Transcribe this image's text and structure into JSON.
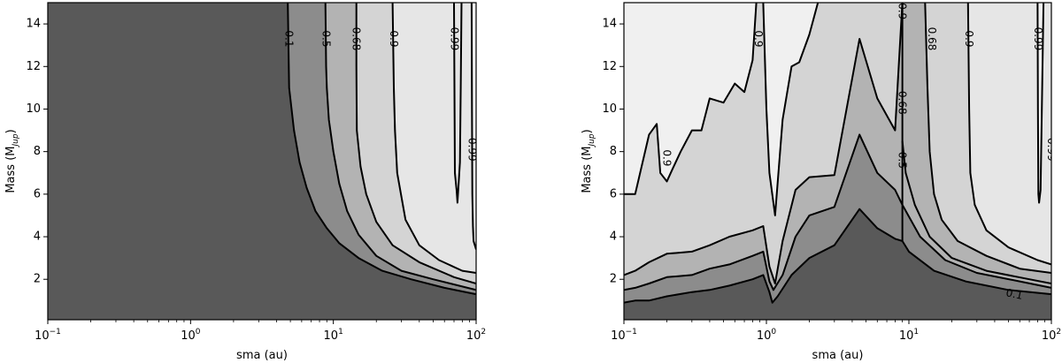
{
  "chart_data": [
    {
      "type": "contour",
      "xlabel": "sma (au)",
      "ylabel_main": "Mass (M",
      "ylabel_sub": "Jup",
      "ylabel_close": ")",
      "xscale": "log",
      "xlim": [
        0.1,
        100
      ],
      "ylim": [
        0.1,
        15
      ],
      "xticks": [
        {
          "value": 0.1,
          "base": "10",
          "exp": "−1"
        },
        {
          "value": 1,
          "base": "10",
          "exp": "0"
        },
        {
          "value": 10,
          "base": "10",
          "exp": "1"
        },
        {
          "value": 100,
          "base": "10",
          "exp": "2"
        }
      ],
      "yticks": [
        {
          "value": 2,
          "label": "2"
        },
        {
          "value": 4,
          "label": "4"
        },
        {
          "value": 6,
          "label": "6"
        },
        {
          "value": 8,
          "label": "8"
        },
        {
          "value": 10,
          "label": "10"
        },
        {
          "value": 12,
          "label": "12"
        },
        {
          "value": 14,
          "label": "14"
        }
      ],
      "levels": [
        0.1,
        0.5,
        0.68,
        0.9,
        0.99
      ],
      "fill_colors": [
        "#595959",
        "#8c8c8c",
        "#b3b3b3",
        "#d4d4d4",
        "#e6e6e6",
        "#f0f0f0"
      ],
      "contours": [
        {
          "level": "0.1",
          "points": [
            [
              4.8,
              15
            ],
            [
              4.9,
              11
            ],
            [
              5.3,
              9
            ],
            [
              5.8,
              7.5
            ],
            [
              6.5,
              6.3
            ],
            [
              7.5,
              5.2
            ],
            [
              9,
              4.4
            ],
            [
              11,
              3.7
            ],
            [
              15,
              3.0
            ],
            [
              22,
              2.4
            ],
            [
              35,
              2.0
            ],
            [
              60,
              1.6
            ],
            [
              100,
              1.3
            ]
          ]
        },
        {
          "level": "0.5",
          "points": [
            [
              8.8,
              15
            ],
            [
              8.9,
              12
            ],
            [
              9,
              11
            ],
            [
              9.3,
              9.5
            ],
            [
              10,
              8
            ],
            [
              11,
              6.5
            ],
            [
              12.5,
              5.2
            ],
            [
              15,
              4.1
            ],
            [
              20,
              3.1
            ],
            [
              30,
              2.4
            ],
            [
              50,
              2.0
            ],
            [
              100,
              1.5
            ]
          ]
        },
        {
          "level": "0.68",
          "points": [
            [
              14.5,
              15
            ],
            [
              14.5,
              12
            ],
            [
              14.6,
              9
            ],
            [
              15.5,
              7.3
            ],
            [
              17,
              6.0
            ],
            [
              20,
              4.7
            ],
            [
              26,
              3.6
            ],
            [
              40,
              2.8
            ],
            [
              70,
              2.1
            ],
            [
              100,
              1.8
            ]
          ]
        },
        {
          "level": "0.9",
          "points": [
            [
              26,
              15
            ],
            [
              26.5,
              11
            ],
            [
              27,
              9
            ],
            [
              28,
              7
            ],
            [
              32,
              4.8
            ],
            [
              40,
              3.6
            ],
            [
              55,
              2.9
            ],
            [
              80,
              2.4
            ],
            [
              100,
              2.3
            ]
          ]
        },
        {
          "level": "0.99",
          "points": [
            [
              70,
              15
            ],
            [
              70.5,
              11
            ],
            [
              71,
              7
            ],
            [
              73,
              6.2
            ],
            [
              74,
              5.6
            ],
            [
              75,
              6.2
            ],
            [
              77,
              7.5
            ],
            [
              78,
              11
            ],
            [
              79,
              15
            ]
          ]
        },
        {
          "level": "0.99",
          "points": [
            [
              93,
              15
            ],
            [
              93.5,
              10
            ],
            [
              94,
              6
            ],
            [
              95,
              4.5
            ],
            [
              96,
              3.8
            ],
            [
              100,
              3.4
            ]
          ]
        }
      ],
      "labels": [
        {
          "text": "0.1",
          "x": 4.9,
          "y": 13.3
        },
        {
          "text": "0.5",
          "x": 8.9,
          "y": 13.3
        },
        {
          "text": "0.68",
          "x": 14.5,
          "y": 13.3
        },
        {
          "text": "0.9",
          "x": 26.5,
          "y": 13.3
        },
        {
          "text": "0.99",
          "x": 70.5,
          "y": 13.3
        },
        {
          "text": "0.99",
          "x": 93.5,
          "y": 8.1
        }
      ]
    },
    {
      "type": "contour",
      "xlabel": "sma (au)",
      "ylabel_main": "Mass (M",
      "ylabel_sub": "Jup",
      "ylabel_close": ")",
      "xscale": "log",
      "xlim": [
        0.1,
        100
      ],
      "ylim": [
        0.1,
        15
      ],
      "xticks": [
        {
          "value": 0.1,
          "base": "10",
          "exp": "−1"
        },
        {
          "value": 1,
          "base": "10",
          "exp": "0"
        },
        {
          "value": 10,
          "base": "10",
          "exp": "1"
        },
        {
          "value": 100,
          "base": "10",
          "exp": "2"
        }
      ],
      "yticks": [
        {
          "value": 2,
          "label": "2"
        },
        {
          "value": 4,
          "label": "4"
        },
        {
          "value": 6,
          "label": "6"
        },
        {
          "value": 8,
          "label": "8"
        },
        {
          "value": 10,
          "label": "10"
        },
        {
          "value": 12,
          "label": "12"
        },
        {
          "value": 14,
          "label": "14"
        }
      ],
      "levels": [
        0.1,
        0.5,
        0.68,
        0.9,
        0.99
      ],
      "fill_colors": [
        "#595959",
        "#8c8c8c",
        "#b3b3b3",
        "#d4d4d4",
        "#e6e6e6",
        "#f0f0f0"
      ],
      "contours": [
        {
          "level": "0.1",
          "points": [
            [
              0.1,
              0.9
            ],
            [
              0.12,
              1.0
            ],
            [
              0.15,
              1.0
            ],
            [
              0.2,
              1.2
            ],
            [
              0.3,
              1.4
            ],
            [
              0.4,
              1.5
            ],
            [
              0.55,
              1.7
            ],
            [
              0.8,
              2.0
            ],
            [
              0.95,
              2.2
            ],
            [
              1.05,
              1.4
            ],
            [
              1.1,
              0.9
            ],
            [
              1.2,
              1.2
            ],
            [
              1.5,
              2.2
            ],
            [
              2,
              3.0
            ],
            [
              3,
              3.6
            ],
            [
              4.5,
              5.3
            ],
            [
              6,
              4.4
            ],
            [
              8,
              3.9
            ],
            [
              9,
              3.8
            ],
            [
              10,
              3.3
            ],
            [
              15,
              2.4
            ],
            [
              25,
              1.9
            ],
            [
              50,
              1.5
            ],
            [
              100,
              1.3
            ]
          ]
        },
        {
          "level": "0.5",
          "points": [
            [
              0.1,
              1.5
            ],
            [
              0.12,
              1.6
            ],
            [
              0.15,
              1.8
            ],
            [
              0.2,
              2.1
            ],
            [
              0.3,
              2.2
            ],
            [
              0.4,
              2.5
            ],
            [
              0.55,
              2.7
            ],
            [
              0.8,
              3.1
            ],
            [
              0.95,
              3.3
            ],
            [
              1.05,
              1.9
            ],
            [
              1.12,
              1.5
            ],
            [
              1.3,
              2.2
            ],
            [
              1.6,
              4.0
            ],
            [
              2,
              5.0
            ],
            [
              3,
              5.4
            ],
            [
              4.5,
              8.8
            ],
            [
              6,
              7.0
            ],
            [
              8,
              6.2
            ],
            [
              9,
              5.5
            ],
            [
              12,
              4.0
            ],
            [
              18,
              2.9
            ],
            [
              30,
              2.3
            ],
            [
              60,
              1.9
            ],
            [
              100,
              1.6
            ]
          ]
        },
        {
          "level": "0.68",
          "points": [
            [
              0.1,
              2.2
            ],
            [
              0.12,
              2.4
            ],
            [
              0.15,
              2.8
            ],
            [
              0.2,
              3.2
            ],
            [
              0.3,
              3.3
            ],
            [
              0.4,
              3.6
            ],
            [
              0.55,
              4.0
            ],
            [
              0.8,
              4.3
            ],
            [
              0.95,
              4.5
            ],
            [
              1.05,
              2.6
            ],
            [
              1.15,
              1.8
            ],
            [
              1.3,
              3.8
            ],
            [
              1.6,
              6.2
            ],
            [
              2,
              6.8
            ],
            [
              3,
              6.9
            ],
            [
              4.5,
              13.3
            ],
            [
              6,
              10.5
            ],
            [
              8,
              9.0
            ],
            [
              9,
              15
            ],
            [
              9.0,
              15
            ]
          ]
        },
        {
          "level": "0.68b",
          "points": [
            [
              9,
              8.5
            ],
            [
              9.5,
              7.0
            ],
            [
              11,
              5.5
            ],
            [
              14,
              4.0
            ],
            [
              20,
              3.0
            ],
            [
              35,
              2.4
            ],
            [
              70,
              2.0
            ],
            [
              100,
              1.8
            ]
          ]
        },
        {
          "level": "0.9",
          "points": [
            [
              0.1,
              6.0
            ],
            [
              0.12,
              6.0
            ],
            [
              0.15,
              8.8
            ],
            [
              0.17,
              9.3
            ],
            [
              0.18,
              7.0
            ],
            [
              0.2,
              6.6
            ],
            [
              0.22,
              7.2
            ],
            [
              0.25,
              8.0
            ],
            [
              0.3,
              9.0
            ],
            [
              0.35,
              9.0
            ],
            [
              0.4,
              10.5
            ],
            [
              0.5,
              10.3
            ],
            [
              0.6,
              11.2
            ],
            [
              0.7,
              10.8
            ],
            [
              0.8,
              12.3
            ],
            [
              0.85,
              15
            ]
          ]
        },
        {
          "level": "0.9b",
          "points": [
            [
              0.95,
              15
            ],
            [
              1.0,
              10
            ],
            [
              1.05,
              7
            ],
            [
              1.15,
              5.0
            ],
            [
              1.3,
              9.5
            ],
            [
              1.5,
              12.0
            ],
            [
              1.7,
              12.2
            ],
            [
              2,
              13.5
            ],
            [
              2.3,
              15
            ]
          ]
        },
        {
          "level": "0.9c",
          "points": [
            [
              13,
              15
            ],
            [
              13.5,
              11
            ],
            [
              14,
              8
            ],
            [
              15,
              6.0
            ],
            [
              17,
              4.8
            ],
            [
              22,
              3.8
            ],
            [
              35,
              3.1
            ],
            [
              60,
              2.5
            ],
            [
              100,
              2.3
            ]
          ]
        },
        {
          "level": "0.99",
          "points": [
            [
              26,
              15
            ],
            [
              26.5,
              10
            ],
            [
              27,
              7
            ],
            [
              29,
              5.5
            ],
            [
              35,
              4.3
            ],
            [
              50,
              3.5
            ],
            [
              80,
              2.9
            ],
            [
              100,
              2.7
            ]
          ]
        },
        {
          "level": "0.99b",
          "points": [
            [
              80,
              15
            ],
            [
              80.5,
              10
            ],
            [
              81,
              6
            ],
            [
              82,
              5.6
            ],
            [
              84,
              6.2
            ],
            [
              88,
              15
            ]
          ]
        }
      ],
      "labels": [
        {
          "text": "0.9",
          "x": 0.2,
          "y": 7.7
        },
        {
          "text": "0.9",
          "x": 0.88,
          "y": 13.3
        },
        {
          "text": "0.68",
          "x": 9.0,
          "y": 10.3
        },
        {
          "text": "0.5",
          "x": 9.0,
          "y": 7.6
        },
        {
          "text": "0.9",
          "x": 9.0,
          "y": 14.6
        },
        {
          "text": "0.68",
          "x": 14.5,
          "y": 13.3
        },
        {
          "text": "0.9",
          "x": 26.5,
          "y": 13.3
        },
        {
          "text": "0.99",
          "x": 80.5,
          "y": 13.3
        },
        {
          "text": "0.99",
          "x": 100,
          "y": 8.1
        },
        {
          "text": "0.1",
          "x": 55,
          "y": 1.3
        }
      ]
    }
  ]
}
